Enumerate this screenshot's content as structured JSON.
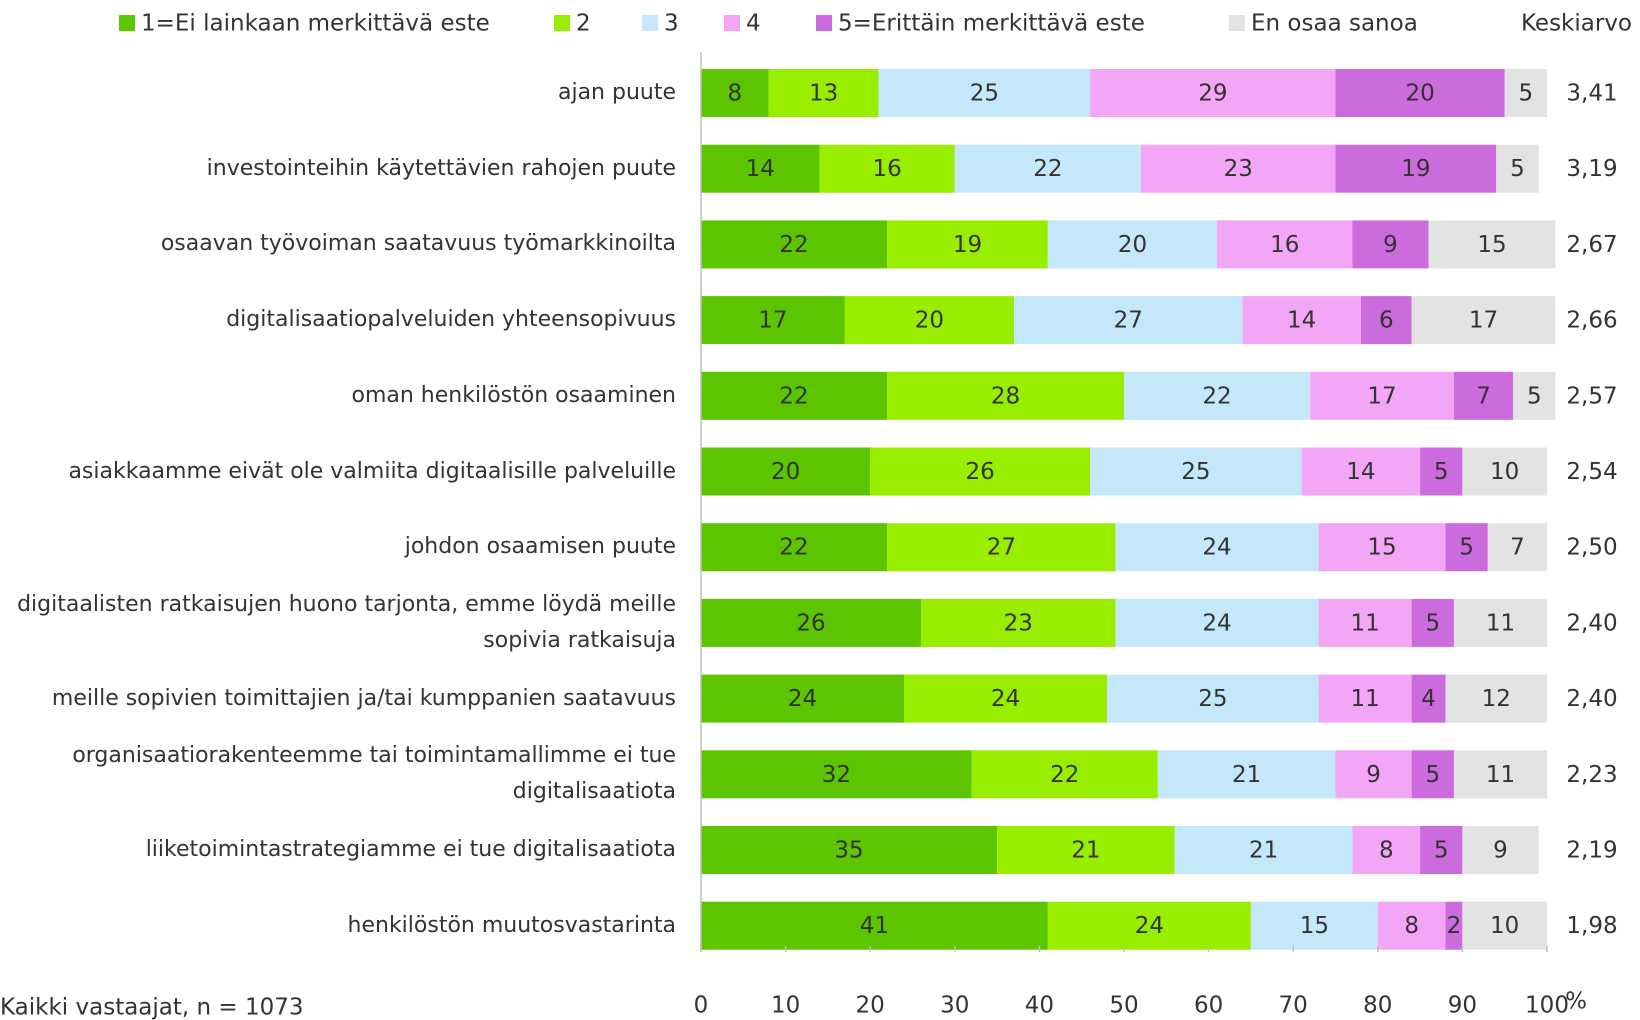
{
  "chart_data": {
    "type": "stacked-bar-horizontal",
    "categories": [
      "ajan puute",
      "investointeihin käytettävien rahojen puute",
      "osaavan työvoiman saatavuus työmarkkinoilta",
      "digitalisaatiopalveluiden yhteensopivuus",
      "oman henkilöstön osaaminen",
      "asiakkaamme eivät ole valmiita digitaalisille palveluille",
      "johdon osaamisen puute",
      "digitaalisten ratkaisujen huono tarjonta, emme löydä meille sopivia ratkaisuja",
      "meille sopivien toimittajien ja/tai kumppanien saatavuus",
      "organisaatiorakenteemme tai toimintamallimme ei tue digitalisaatiota",
      "liiketoimintastrategiamme ei tue digitalisaatiota",
      "henkilöstön muutosvastarinta"
    ],
    "series": [
      {
        "name": "1=Ei lainkaan merkittävä este",
        "color": "#5cc500",
        "values": [
          8,
          14,
          22,
          17,
          22,
          20,
          22,
          26,
          24,
          32,
          35,
          41
        ]
      },
      {
        "name": "2",
        "color": "#99ee00",
        "values": [
          13,
          16,
          19,
          20,
          28,
          26,
          27,
          23,
          24,
          22,
          21,
          24
        ]
      },
      {
        "name": "3",
        "color": "#c5e7fa",
        "values": [
          25,
          22,
          20,
          27,
          22,
          25,
          24,
          24,
          25,
          21,
          21,
          15
        ]
      },
      {
        "name": "4",
        "color": "#f4a6f6",
        "values": [
          29,
          23,
          16,
          14,
          17,
          14,
          15,
          11,
          11,
          9,
          8,
          8
        ]
      },
      {
        "name": "5=Erittäin merkittävä este",
        "color": "#cc6bde",
        "values": [
          20,
          19,
          9,
          6,
          7,
          5,
          5,
          5,
          4,
          5,
          5,
          2
        ]
      },
      {
        "name": "En osaa sanoa",
        "color": "#e3e3e3",
        "values": [
          5,
          5,
          15,
          17,
          5,
          10,
          7,
          11,
          12,
          11,
          9,
          10
        ]
      }
    ],
    "mean": {
      "name": "Keskiarvo",
      "values": [
        3.41,
        3.19,
        2.67,
        2.66,
        2.57,
        2.54,
        2.5,
        2.4,
        2.4,
        2.23,
        2.19,
        1.98
      ],
      "value_labels": [
        "3,41",
        "3,19",
        "2,67",
        "2,66",
        "2,57",
        "2,54",
        "2,50",
        "2,40",
        "2,40",
        "2,23",
        "2,19",
        "1,98"
      ]
    },
    "xlim": [
      0,
      100
    ],
    "xticks": [
      0,
      10,
      20,
      30,
      40,
      50,
      60,
      70,
      80,
      90,
      100
    ],
    "x_axis_label": "%",
    "note": "Kaikki vastaajat, n = 1073",
    "legend": "top"
  }
}
